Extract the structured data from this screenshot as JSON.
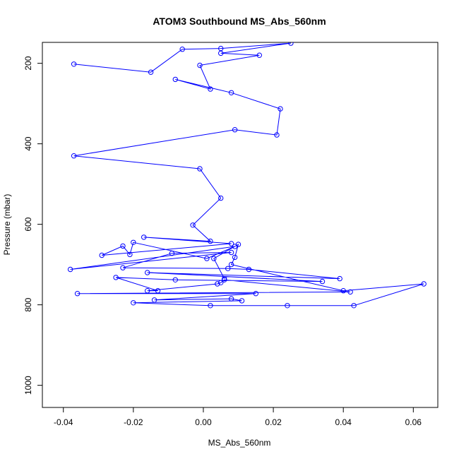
{
  "chart_data": {
    "type": "line",
    "title": "ATOM3 Southbound MS_Abs_560nm",
    "xlabel": "MS_Abs_560nm",
    "ylabel": "Pressure (mbar)",
    "xlim": [
      -0.046,
      0.067
    ],
    "ylim": [
      1055,
      148
    ],
    "y_inverted": true,
    "x_ticks": [
      -0.04,
      -0.02,
      0.0,
      0.02,
      0.04,
      0.06
    ],
    "x_tick_labels": [
      "-0.04",
      "-0.02",
      "0.00",
      "0.02",
      "0.04",
      "0.06"
    ],
    "y_ticks": [
      200,
      400,
      600,
      800,
      1000
    ],
    "y_tick_labels": [
      "200",
      "400",
      "600",
      "800",
      "1000"
    ],
    "grid": false,
    "series": [
      {
        "color": "#0000ff",
        "marker": "open-circle",
        "x": [
          -0.037,
          -0.015,
          -0.006,
          0.005,
          0.025,
          0.005,
          0.016,
          -0.001,
          0.002,
          -0.008,
          0.008,
          0.022,
          0.021,
          0.009,
          -0.037,
          -0.001,
          0.005,
          -0.003,
          0.002,
          -0.017,
          0.008,
          -0.029,
          -0.023,
          -0.021,
          -0.02,
          0.001,
          0.009,
          -0.038,
          0.008,
          -0.009,
          -0.023,
          0.007,
          0.013,
          0.039,
          -0.016,
          0.034,
          -0.008,
          -0.025,
          -0.013,
          -0.016,
          0.004,
          0.005,
          0.006,
          0.042,
          -0.036,
          0.015,
          -0.014,
          0.008,
          0.011,
          -0.02,
          0.002,
          0.024,
          0.043,
          0.063,
          0.04,
          0.008,
          0.009,
          0.01,
          0.003,
          0.006
        ],
        "y": [
          202,
          222,
          165,
          163,
          150,
          175,
          180,
          205,
          264,
          240,
          273,
          313,
          378,
          365,
          430,
          462,
          535,
          602,
          642,
          632,
          648,
          677,
          654,
          675,
          645,
          685,
          655,
          712,
          670,
          672,
          708,
          710,
          712,
          735,
          720,
          742,
          738,
          732,
          765,
          765,
          748,
          745,
          738,
          768,
          772,
          772,
          788,
          785,
          790,
          795,
          802,
          802,
          802,
          748,
          765,
          700,
          682,
          650,
          685,
          735
        ]
      }
    ]
  }
}
